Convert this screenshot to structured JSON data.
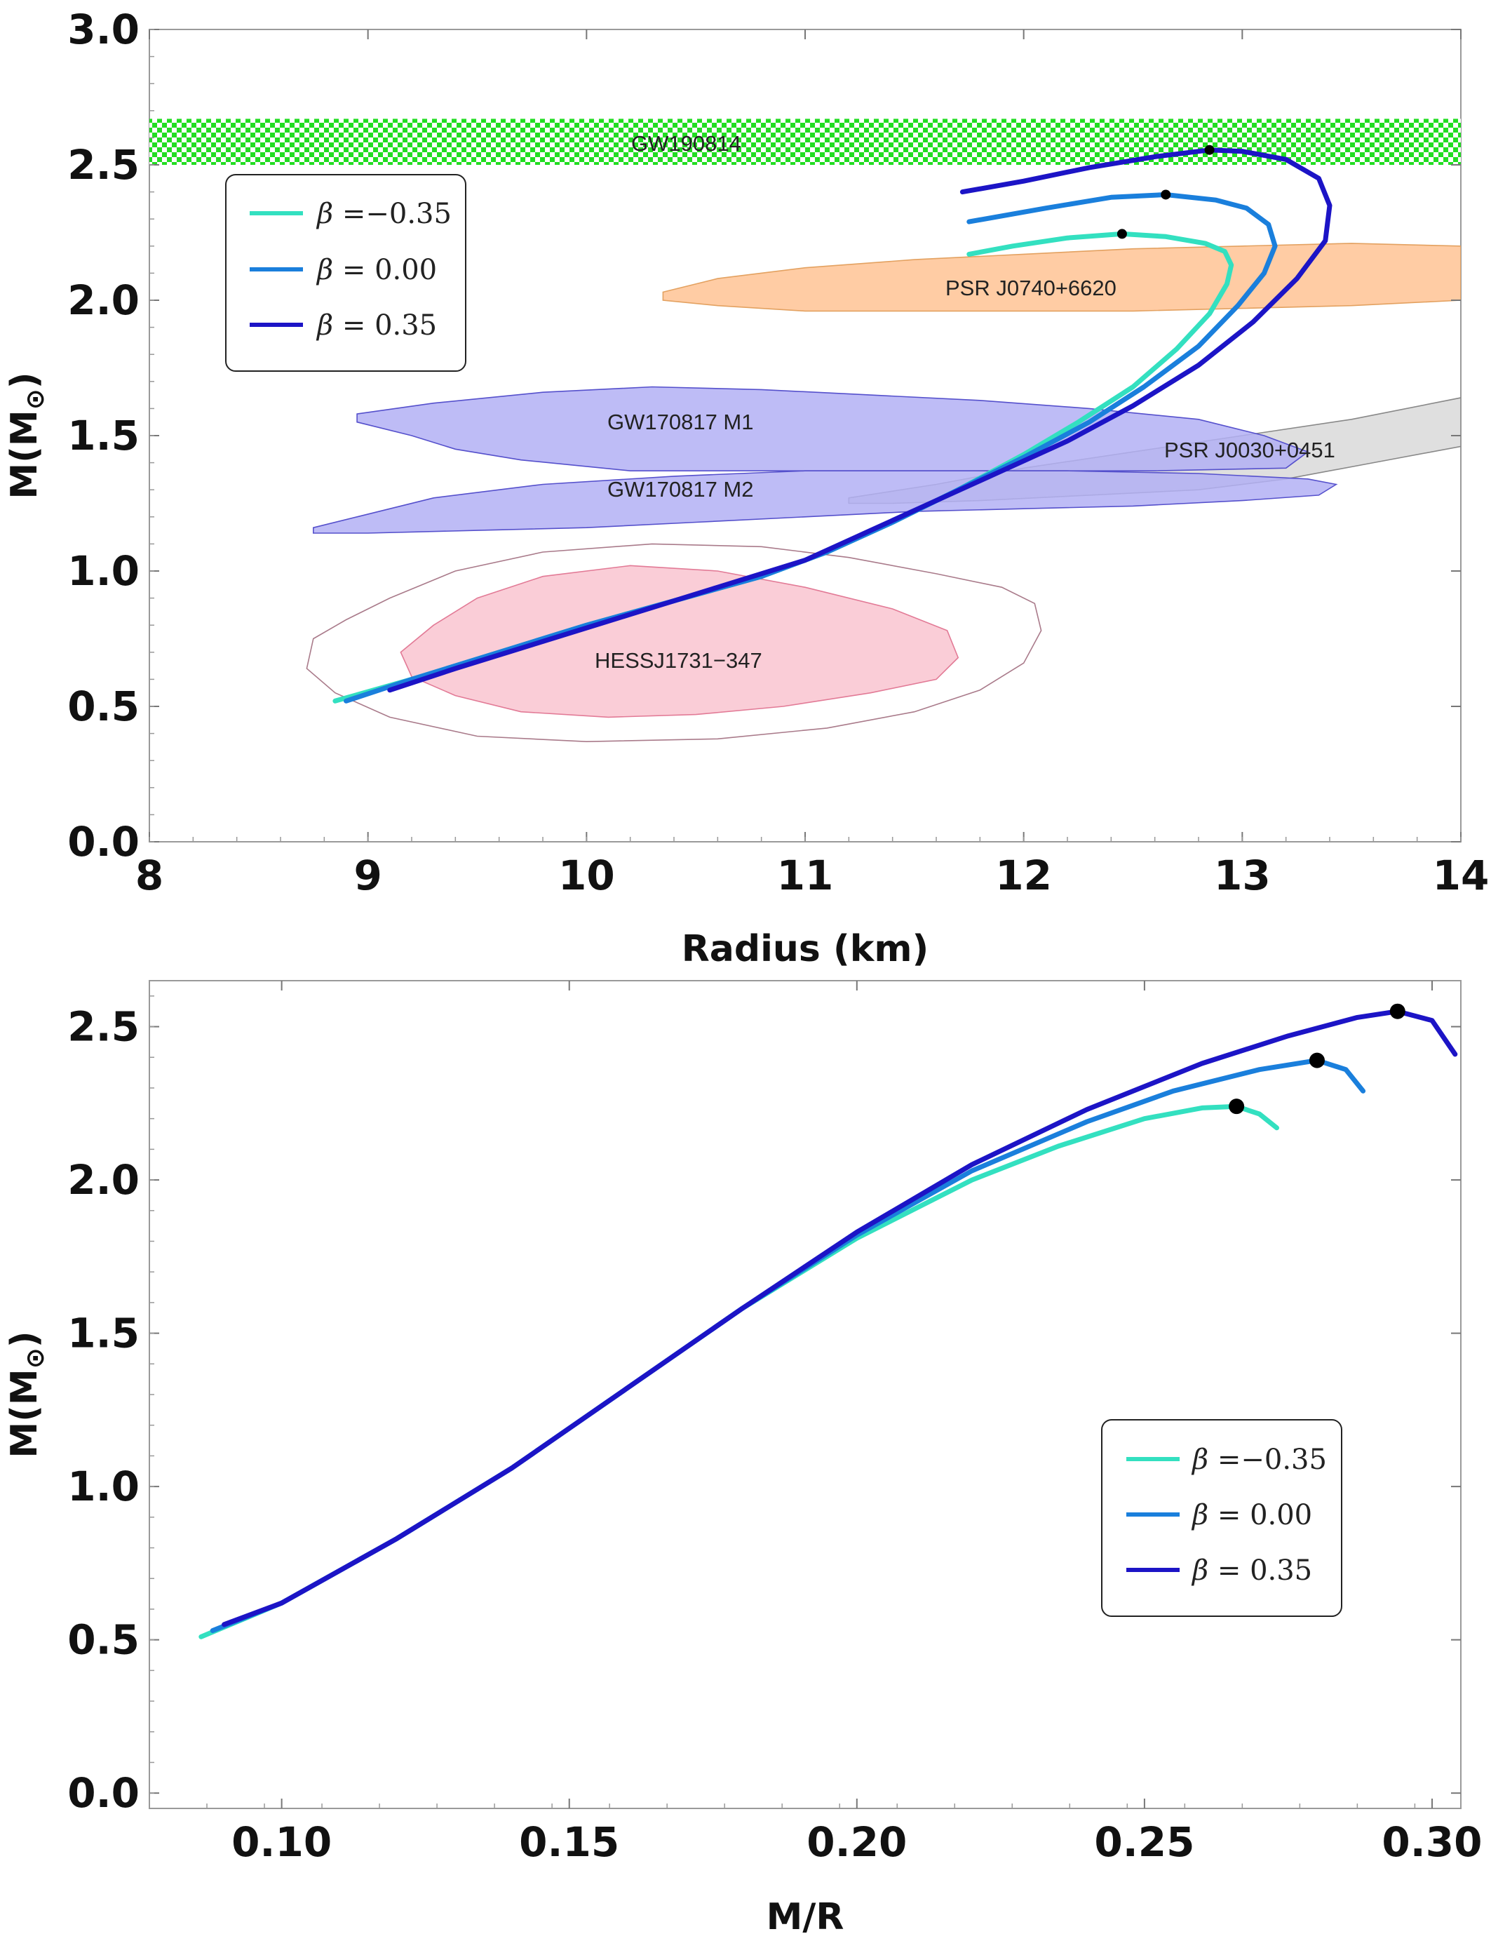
{
  "chart_data": [
    {
      "type": "line",
      "xlabel": "Radius (km)",
      "ylabel": "M(M☉)",
      "xlim": [
        8,
        14
      ],
      "ylim": [
        0,
        3.0
      ],
      "x_ticks": [
        "8",
        "9",
        "10",
        "11",
        "12",
        "13",
        "14"
      ],
      "y_ticks": [
        "0.0",
        "0.5",
        "1.0",
        "1.5",
        "2.0",
        "2.5",
        "3.0"
      ],
      "grid": false,
      "legend_position": "upper-left",
      "series": [
        {
          "name": "β =−0.35",
          "color": "#33e0c0",
          "x": [
            8.85,
            9.2,
            9.6,
            10.0,
            10.4,
            10.8,
            11.1,
            11.4,
            11.7,
            12.0,
            12.25,
            12.5,
            12.7,
            12.85,
            12.93,
            12.95,
            12.92,
            12.83,
            12.65,
            12.45,
            12.2,
            11.95,
            11.75
          ],
          "y": [
            0.52,
            0.6,
            0.7,
            0.8,
            0.89,
            0.98,
            1.07,
            1.18,
            1.3,
            1.43,
            1.55,
            1.68,
            1.82,
            1.95,
            2.06,
            2.13,
            2.18,
            2.21,
            2.235,
            2.245,
            2.23,
            2.2,
            2.17
          ]
        },
        {
          "name": "β = 0.00",
          "color": "#1a7fdc",
          "x": [
            8.9,
            9.2,
            9.6,
            10.0,
            10.4,
            10.8,
            11.1,
            11.4,
            11.7,
            12.0,
            12.3,
            12.55,
            12.8,
            12.98,
            13.1,
            13.15,
            13.12,
            13.02,
            12.88,
            12.65,
            12.4,
            12.1,
            11.75
          ],
          "y": [
            0.52,
            0.6,
            0.7,
            0.8,
            0.89,
            0.98,
            1.07,
            1.18,
            1.3,
            1.42,
            1.55,
            1.68,
            1.83,
            1.98,
            2.1,
            2.2,
            2.28,
            2.34,
            2.37,
            2.39,
            2.38,
            2.34,
            2.29
          ]
        },
        {
          "name": "β = 0.35",
          "color": "#1c14c6",
          "x": [
            9.1,
            9.4,
            9.8,
            10.2,
            10.6,
            11.0,
            11.3,
            11.6,
            11.9,
            12.2,
            12.5,
            12.8,
            13.05,
            13.25,
            13.38,
            13.4,
            13.35,
            13.2,
            13.0,
            12.85,
            12.6,
            12.3,
            12.0,
            11.72
          ],
          "y": [
            0.56,
            0.64,
            0.74,
            0.84,
            0.94,
            1.04,
            1.15,
            1.26,
            1.37,
            1.48,
            1.61,
            1.76,
            1.92,
            2.08,
            2.22,
            2.35,
            2.45,
            2.52,
            2.55,
            2.555,
            2.53,
            2.49,
            2.44,
            2.4
          ]
        }
      ],
      "max_mass_points": [
        {
          "x": 12.45,
          "y": 2.245
        },
        {
          "x": 12.65,
          "y": 2.39
        },
        {
          "x": 12.85,
          "y": 2.555
        }
      ],
      "regions": [
        {
          "label": "GW190814",
          "color": "#22dd22",
          "pattern": "checker",
          "x": [
            8,
            14
          ],
          "y": [
            2.5,
            2.67
          ]
        },
        {
          "label": "PSR J0740+6620",
          "color": "#ffc79a",
          "stroke": "#e3a160",
          "outline": [
            [
              10.35,
              2.03
            ],
            [
              10.6,
              2.08
            ],
            [
              11.0,
              2.12
            ],
            [
              11.5,
              2.15
            ],
            [
              12.0,
              2.17
            ],
            [
              12.5,
              2.19
            ],
            [
              13.0,
              2.2
            ],
            [
              13.5,
              2.21
            ],
            [
              14.0,
              2.2
            ],
            [
              14.0,
              2.0
            ],
            [
              13.5,
              1.98
            ],
            [
              13.0,
              1.97
            ],
            [
              12.5,
              1.96
            ],
            [
              12.0,
              1.96
            ],
            [
              11.5,
              1.96
            ],
            [
              11.0,
              1.96
            ],
            [
              10.6,
              1.98
            ],
            [
              10.35,
              2.0
            ]
          ]
        },
        {
          "label": "PSR J0030+0451",
          "color": "#dcdcdc",
          "stroke": "#888888",
          "outline": [
            [
              11.2,
              1.27
            ],
            [
              11.6,
              1.32
            ],
            [
              12.0,
              1.38
            ],
            [
              12.5,
              1.44
            ],
            [
              13.0,
              1.5
            ],
            [
              13.5,
              1.56
            ],
            [
              14.0,
              1.64
            ],
            [
              14.0,
              1.46
            ],
            [
              13.6,
              1.4
            ],
            [
              13.2,
              1.34
            ],
            [
              12.8,
              1.3
            ],
            [
              12.3,
              1.28
            ],
            [
              11.8,
              1.26
            ],
            [
              11.4,
              1.25
            ],
            [
              11.2,
              1.25
            ]
          ]
        },
        {
          "label": "GW170817 M1",
          "color": "#b3b0f5",
          "stroke": "#5550cc",
          "outline": [
            [
              8.95,
              1.58
            ],
            [
              9.3,
              1.62
            ],
            [
              9.8,
              1.66
            ],
            [
              10.3,
              1.68
            ],
            [
              10.8,
              1.67
            ],
            [
              11.3,
              1.65
            ],
            [
              11.8,
              1.63
            ],
            [
              12.3,
              1.6
            ],
            [
              12.8,
              1.56
            ],
            [
              13.1,
              1.5
            ],
            [
              13.3,
              1.44
            ],
            [
              13.2,
              1.38
            ],
            [
              12.6,
              1.37
            ],
            [
              12.0,
              1.37
            ],
            [
              11.0,
              1.37
            ],
            [
              10.2,
              1.37
            ],
            [
              9.7,
              1.41
            ],
            [
              9.4,
              1.45
            ],
            [
              9.2,
              1.5
            ],
            [
              8.95,
              1.55
            ]
          ]
        },
        {
          "label": "GW170817 M2",
          "color": "#b3b0f5",
          "stroke": "#5550cc",
          "outline": [
            [
              8.75,
              1.16
            ],
            [
              8.95,
              1.2
            ],
            [
              9.3,
              1.27
            ],
            [
              9.8,
              1.32
            ],
            [
              10.4,
              1.35
            ],
            [
              11.0,
              1.37
            ],
            [
              11.6,
              1.37
            ],
            [
              12.2,
              1.37
            ],
            [
              12.8,
              1.36
            ],
            [
              13.3,
              1.34
            ],
            [
              13.43,
              1.32
            ],
            [
              13.35,
              1.28
            ],
            [
              13.0,
              1.26
            ],
            [
              12.5,
              1.24
            ],
            [
              12.0,
              1.23
            ],
            [
              11.5,
              1.22
            ],
            [
              11.0,
              1.2
            ],
            [
              10.5,
              1.18
            ],
            [
              10.0,
              1.16
            ],
            [
              9.5,
              1.15
            ],
            [
              9.0,
              1.14
            ],
            [
              8.75,
              1.14
            ]
          ]
        },
        {
          "label": "HESSJ1731−347",
          "color": "#f9c8d3",
          "stroke": "#e27a96",
          "outline": [
            [
              9.15,
              0.7
            ],
            [
              9.3,
              0.8
            ],
            [
              9.5,
              0.9
            ],
            [
              9.8,
              0.98
            ],
            [
              10.2,
              1.02
            ],
            [
              10.6,
              1.0
            ],
            [
              11.0,
              0.94
            ],
            [
              11.4,
              0.86
            ],
            [
              11.65,
              0.78
            ],
            [
              11.7,
              0.68
            ],
            [
              11.6,
              0.6
            ],
            [
              11.3,
              0.55
            ],
            [
              10.9,
              0.5
            ],
            [
              10.5,
              0.47
            ],
            [
              10.1,
              0.46
            ],
            [
              9.7,
              0.48
            ],
            [
              9.4,
              0.54
            ],
            [
              9.2,
              0.61
            ]
          ]
        },
        {
          "label": "",
          "color": "none",
          "stroke": "#a97a8a",
          "outline": [
            [
              8.75,
              0.75
            ],
            [
              8.9,
              0.82
            ],
            [
              9.1,
              0.9
            ],
            [
              9.4,
              1.0
            ],
            [
              9.8,
              1.07
            ],
            [
              10.3,
              1.1
            ],
            [
              10.8,
              1.09
            ],
            [
              11.2,
              1.05
            ],
            [
              11.6,
              0.99
            ],
            [
              11.9,
              0.94
            ],
            [
              12.05,
              0.88
            ],
            [
              12.08,
              0.78
            ],
            [
              12.0,
              0.66
            ],
            [
              11.8,
              0.56
            ],
            [
              11.5,
              0.48
            ],
            [
              11.1,
              0.42
            ],
            [
              10.6,
              0.38
            ],
            [
              10.0,
              0.37
            ],
            [
              9.5,
              0.39
            ],
            [
              9.1,
              0.46
            ],
            [
              8.85,
              0.55
            ],
            [
              8.72,
              0.64
            ]
          ]
        }
      ]
    },
    {
      "type": "line",
      "xlabel": "M/R",
      "ylabel": "M(M☉)",
      "xlim": [
        0.077,
        0.305
      ],
      "ylim": [
        -0.05,
        2.65
      ],
      "x_ticks": [
        "0.10",
        "0.15",
        "0.20",
        "0.25",
        "0.30"
      ],
      "y_ticks": [
        "0.0",
        "0.5",
        "1.0",
        "1.5",
        "2.0",
        "2.5"
      ],
      "grid": false,
      "legend_position": "lower-right",
      "series": [
        {
          "name": "β =−0.35",
          "color": "#33e0c0",
          "x": [
            0.086,
            0.1,
            0.12,
            0.14,
            0.16,
            0.18,
            0.2,
            0.22,
            0.235,
            0.25,
            0.26,
            0.266,
            0.27,
            0.273
          ],
          "y": [
            0.51,
            0.62,
            0.83,
            1.06,
            1.32,
            1.58,
            1.81,
            2.0,
            2.11,
            2.2,
            2.235,
            2.24,
            2.215,
            2.17
          ]
        },
        {
          "name": "β = 0.00",
          "color": "#1a7fdc",
          "x": [
            0.088,
            0.1,
            0.12,
            0.14,
            0.16,
            0.18,
            0.2,
            0.22,
            0.24,
            0.255,
            0.27,
            0.28,
            0.285,
            0.288
          ],
          "y": [
            0.53,
            0.62,
            0.83,
            1.06,
            1.32,
            1.58,
            1.82,
            2.03,
            2.19,
            2.29,
            2.36,
            2.39,
            2.36,
            2.29
          ]
        },
        {
          "name": "β = 0.35",
          "color": "#1c14c6",
          "x": [
            0.09,
            0.1,
            0.12,
            0.14,
            0.16,
            0.18,
            0.2,
            0.22,
            0.24,
            0.26,
            0.275,
            0.287,
            0.294,
            0.3,
            0.304
          ],
          "y": [
            0.55,
            0.62,
            0.83,
            1.06,
            1.32,
            1.58,
            1.83,
            2.05,
            2.23,
            2.38,
            2.47,
            2.53,
            2.55,
            2.52,
            2.41
          ]
        }
      ],
      "max_mass_points": [
        {
          "x": 0.266,
          "y": 2.24
        },
        {
          "x": 0.28,
          "y": 2.39
        },
        {
          "x": 0.294,
          "y": 2.55
        }
      ]
    }
  ],
  "labels": {
    "top_ylabel_main": "M(M",
    "top_ylabel_sub": "⊙",
    "top_ylabel_close": ")",
    "bottom_ylabel_main": "M(M",
    "bottom_ylabel_sub": "⊙",
    "bottom_ylabel_close": ")",
    "top_xlabel": "Radius (km)",
    "bottom_xlabel": "M/R",
    "gw190814": "GW190814",
    "psr0740": "PSR J0740+6620",
    "psr0030": "PSR J0030+0451",
    "gw170817m1": "GW170817 M1",
    "gw170817m2": "GW170817 M2",
    "hess": "HESSJ1731−347"
  },
  "legend": [
    {
      "beta": "β",
      "text": " =−0.35",
      "color": "#33e0c0"
    },
    {
      "beta": "β",
      "text": " = 0.00",
      "color": "#1a7fdc"
    },
    {
      "beta": "β",
      "text": " = 0.35",
      "color": "#1c14c6"
    }
  ]
}
